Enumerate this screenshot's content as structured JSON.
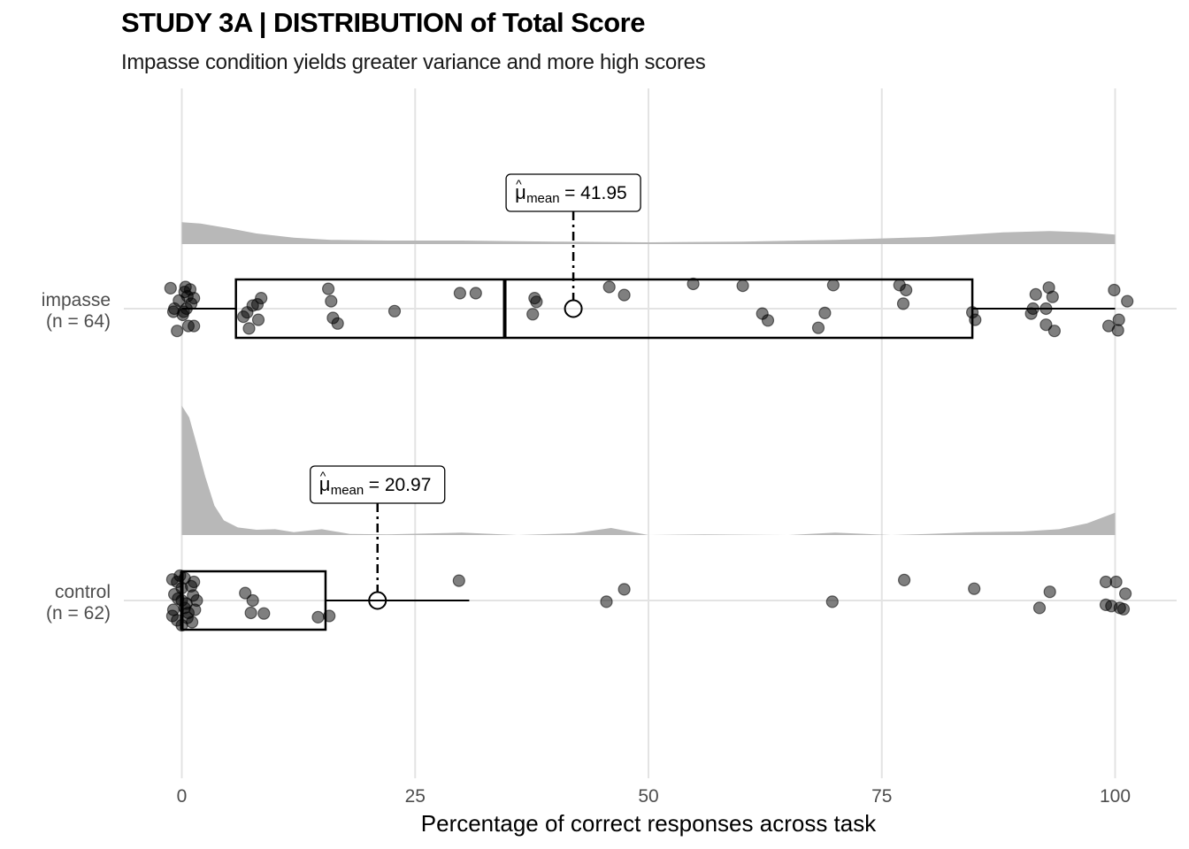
{
  "chart_data": {
    "type": "boxplot",
    "title": "STUDY 3A | DISTRIBUTION of Total Score",
    "subtitle": "Impasse condition yields greater variance and more high scores",
    "xlabel": "Percentage of correct responses across task",
    "ylabel": "",
    "xlim": [
      0,
      100
    ],
    "x_ticks": [
      0,
      25,
      50,
      75,
      100
    ],
    "grid": true,
    "groups": [
      {
        "label": "impasse",
        "n_label": "(n = 64)",
        "mean_label": "= 41.95",
        "mean": 41.95,
        "box": {
          "min": 0,
          "q1": 5.8,
          "median": 34.6,
          "q3": 84.7,
          "max": 100
        },
        "density": [
          [
            0,
            0.62
          ],
          [
            2,
            0.58
          ],
          [
            5,
            0.45
          ],
          [
            8,
            0.3
          ],
          [
            12,
            0.18
          ],
          [
            16,
            0.12
          ],
          [
            22,
            0.1
          ],
          [
            30,
            0.1
          ],
          [
            40,
            0.07
          ],
          [
            50,
            0.05
          ],
          [
            60,
            0.07
          ],
          [
            70,
            0.12
          ],
          [
            80,
            0.2
          ],
          [
            88,
            0.33
          ],
          [
            93,
            0.37
          ],
          [
            97,
            0.33
          ],
          [
            100,
            0.27
          ]
        ],
        "points": [
          [
            -1.2,
            0.33
          ],
          [
            -0.8,
            0.0
          ],
          [
            -0.3,
            0.13
          ],
          [
            0.2,
            -0.05
          ],
          [
            0.5,
            0.0
          ],
          [
            0.6,
            0.2
          ],
          [
            1.0,
            0.08
          ],
          [
            0.4,
            0.35
          ],
          [
            1.3,
            0.17
          ],
          [
            0.9,
            0.31
          ],
          [
            -0.5,
            -0.36
          ],
          [
            0.7,
            -0.28
          ],
          [
            1.3,
            -0.28
          ],
          [
            0.1,
            -0.1
          ],
          [
            -0.9,
            -0.05
          ],
          [
            0.3,
            0.27
          ],
          [
            6.6,
            -0.13
          ],
          [
            7.0,
            -0.06
          ],
          [
            7.6,
            0.05
          ],
          [
            8.1,
            0.07
          ],
          [
            8.5,
            0.17
          ],
          [
            8.2,
            -0.18
          ],
          [
            7.2,
            -0.32
          ],
          [
            15.7,
            0.32
          ],
          [
            16.0,
            0.12
          ],
          [
            16.2,
            -0.15
          ],
          [
            16.7,
            -0.24
          ],
          [
            22.8,
            -0.04
          ],
          [
            29.8,
            0.25
          ],
          [
            31.5,
            0.25
          ],
          [
            37.8,
            0.17
          ],
          [
            38.0,
            0.11
          ],
          [
            37.6,
            -0.09
          ],
          [
            45.8,
            0.35
          ],
          [
            47.4,
            0.22
          ],
          [
            54.8,
            0.4
          ],
          [
            60.1,
            0.37
          ],
          [
            62.2,
            -0.08
          ],
          [
            62.8,
            -0.19
          ],
          [
            68.9,
            -0.07
          ],
          [
            69.8,
            0.38
          ],
          [
            68.2,
            -0.31
          ],
          [
            76.9,
            0.38
          ],
          [
            77.6,
            0.3
          ],
          [
            77.3,
            0.08
          ],
          [
            84.7,
            -0.06
          ],
          [
            85.0,
            -0.18
          ],
          [
            91.5,
            0.23
          ],
          [
            91.2,
            0.0
          ],
          [
            91.0,
            -0.08
          ],
          [
            92.6,
            0.0
          ],
          [
            92.9,
            0.34
          ],
          [
            93.3,
            0.19
          ],
          [
            92.6,
            -0.26
          ],
          [
            93.5,
            -0.36
          ],
          [
            99.9,
            0.3
          ],
          [
            101.3,
            0.12
          ],
          [
            100.4,
            -0.18
          ],
          [
            99.3,
            -0.28
          ],
          [
            100.3,
            -0.35
          ]
        ]
      },
      {
        "label": "control",
        "n_label": "(n = 62)",
        "mean_label": "= 20.97",
        "mean": 20.97,
        "box": {
          "min": 0,
          "q1": 0,
          "median": 0,
          "q3": 15.4,
          "max": 30.8
        },
        "density": [
          [
            0,
            2.2
          ],
          [
            0.8,
            2.0
          ],
          [
            1.5,
            1.6
          ],
          [
            2.5,
            1.0
          ],
          [
            3.5,
            0.5
          ],
          [
            4.5,
            0.25
          ],
          [
            6,
            0.13
          ],
          [
            8,
            0.09
          ],
          [
            10,
            0.1
          ],
          [
            12,
            0.05
          ],
          [
            15,
            0.1
          ],
          [
            18,
            0.02
          ],
          [
            22,
            0.01
          ],
          [
            30,
            0.04
          ],
          [
            36,
            0.0
          ],
          [
            42,
            0.03
          ],
          [
            46,
            0.12
          ],
          [
            50,
            0.0
          ],
          [
            56,
            0.01
          ],
          [
            65,
            0.0
          ],
          [
            70,
            0.04
          ],
          [
            76,
            0.0
          ],
          [
            80,
            0.02
          ],
          [
            85,
            0.05
          ],
          [
            90,
            0.06
          ],
          [
            94,
            0.1
          ],
          [
            97,
            0.2
          ],
          [
            100,
            0.38
          ]
        ],
        "points": [
          [
            -1.0,
            0.34
          ],
          [
            -0.5,
            0.3
          ],
          [
            0.0,
            0.2
          ],
          [
            0.3,
            0.36
          ],
          [
            -0.8,
            0.1
          ],
          [
            -0.4,
            0.03
          ],
          [
            0.0,
            0.0
          ],
          [
            0.5,
            -0.05
          ],
          [
            -1.0,
            -0.25
          ],
          [
            -0.5,
            -0.32
          ],
          [
            0.0,
            -0.4
          ],
          [
            0.6,
            -0.28
          ],
          [
            -0.9,
            -0.15
          ],
          [
            1.0,
            0.23
          ],
          [
            1.2,
            0.08
          ],
          [
            0.7,
            -0.2
          ],
          [
            1.4,
            -0.15
          ],
          [
            1.6,
            0.0
          ],
          [
            1.1,
            -0.35
          ],
          [
            1.3,
            0.3
          ],
          [
            -0.2,
            0.4
          ],
          [
            0.3,
            -0.12
          ],
          [
            6.8,
            0.12
          ],
          [
            7.6,
            0.0
          ],
          [
            7.4,
            -0.2
          ],
          [
            8.8,
            -0.21
          ],
          [
            14.6,
            -0.27
          ],
          [
            15.8,
            -0.25
          ],
          [
            29.7,
            0.32
          ],
          [
            45.5,
            -0.02
          ],
          [
            47.4,
            0.18
          ],
          [
            69.7,
            -0.02
          ],
          [
            77.4,
            0.33
          ],
          [
            84.9,
            0.19
          ],
          [
            91.9,
            -0.12
          ],
          [
            93.0,
            0.14
          ],
          [
            99.0,
            0.3
          ],
          [
            99.0,
            -0.07
          ],
          [
            99.6,
            -0.09
          ],
          [
            100.1,
            0.3
          ],
          [
            100.5,
            -0.12
          ],
          [
            101.1,
            0.11
          ],
          [
            100.9,
            -0.14
          ]
        ]
      }
    ]
  }
}
